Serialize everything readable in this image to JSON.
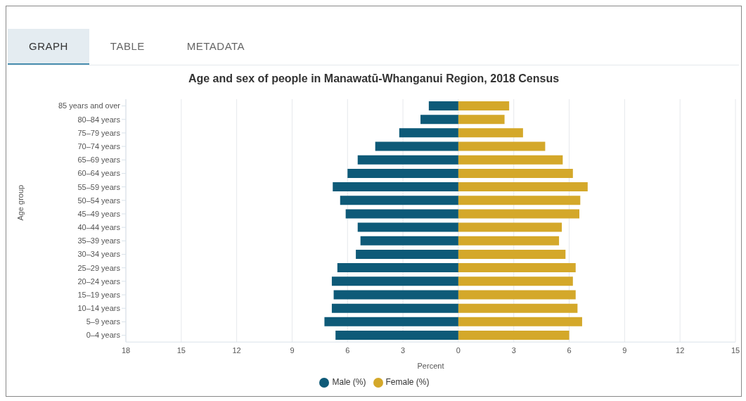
{
  "chart_data": {
    "type": "bar",
    "orientation": "horizontal",
    "stacked": true,
    "title": "Age and sex of people in Manawatū-Whanganui Region, 2018 Census",
    "xlabel": "Percent",
    "ylabel": "Age group",
    "annotations": [
      "GRAPH",
      "TABLE",
      "METADATA"
    ],
    "categories": [
      "85 years and over",
      "80–84 years",
      "75–79 years",
      "70–74 years",
      "65–69 years",
      "60–64 years",
      "55–59 years",
      "50–54 years",
      "45–49 years",
      "40–44 years",
      "35–39 years",
      "30–34 years",
      "25–29 years",
      "20–24 years",
      "15–19 years",
      "10–14 years",
      "5–9 years",
      "0–4 years"
    ],
    "series": [
      {
        "name": "Male (%)",
        "color": "#0e5a78",
        "values": [
          -1.6,
          -2.05,
          -3.2,
          -4.5,
          -5.45,
          -6.0,
          -6.8,
          -6.4,
          -6.1,
          -5.45,
          -5.3,
          -5.55,
          -6.55,
          -6.85,
          -6.75,
          -6.85,
          -7.25,
          -6.65
        ]
      },
      {
        "name": "Female (%)",
        "color": "#d4a82a",
        "values": [
          2.75,
          2.5,
          3.5,
          4.7,
          5.65,
          6.2,
          7.0,
          6.6,
          6.55,
          5.6,
          5.45,
          5.8,
          6.35,
          6.2,
          6.35,
          6.45,
          6.7,
          6.0
        ]
      }
    ],
    "xlim": [
      -18,
      15
    ],
    "xticks": [
      {
        "value": -18,
        "label": "18"
      },
      {
        "value": -15,
        "label": "15"
      },
      {
        "value": -12,
        "label": "12"
      },
      {
        "value": -9,
        "label": "9"
      },
      {
        "value": -6,
        "label": "6"
      },
      {
        "value": -3,
        "label": "3"
      },
      0,
      3,
      6,
      9,
      12,
      15
    ],
    "grid": "x",
    "legend": "bottom"
  }
}
